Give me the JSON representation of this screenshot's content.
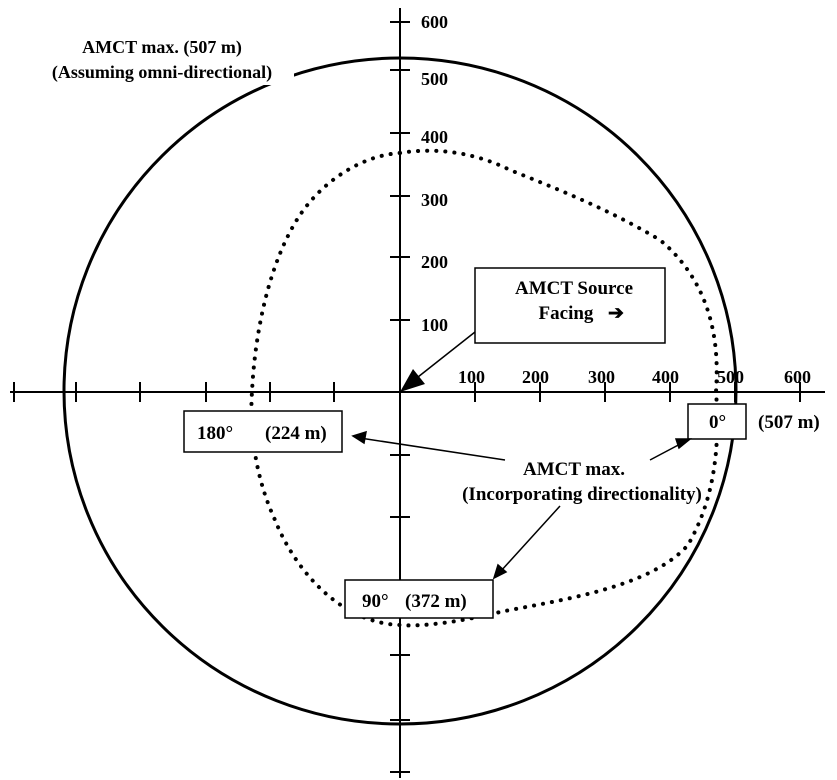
{
  "diagram": {
    "y_tick_labels": [
      "100",
      "200",
      "300",
      "400",
      "500",
      "600"
    ],
    "x_tick_labels": [
      "100",
      "200",
      "300",
      "400",
      "500",
      "600"
    ],
    "omni_label_line1": "AMCT max. (507 m)",
    "omni_label_line2": "(Assuming omni-directional)",
    "source_box_line1": "AMCT Source",
    "source_box_line2": "Facing",
    "source_box_arrow": "➔",
    "directional_label_line1": "AMCT max.",
    "directional_label_line2": "(Incorporating directionality)",
    "box_0deg_angle": "0°",
    "box_0deg_value": "(507 m)",
    "box_180deg_angle": "180°",
    "box_180deg_value": "(224 m)",
    "box_90deg_angle": "90°",
    "box_90deg_value": "(372 m)"
  },
  "chart_data": {
    "type": "polar-plot",
    "omni_directional_range_m": 507,
    "directional_range_m": [
      {
        "bearing_deg": 0,
        "range_m": 507
      },
      {
        "bearing_deg": 90,
        "range_m": 372
      },
      {
        "bearing_deg": 180,
        "range_m": 224
      }
    ],
    "axis_max_m": 600,
    "axis_tick_step_m": 100
  }
}
